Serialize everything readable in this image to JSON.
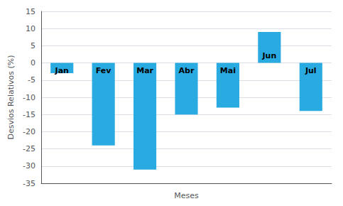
{
  "chart_data": {
    "type": "bar",
    "categories": [
      "Jan",
      "Fev",
      "Mar",
      "Abr",
      "Mai",
      "Jun",
      "Jul"
    ],
    "values": [
      -3,
      -24,
      -31,
      -15,
      -13,
      9,
      -14
    ],
    "color": "#29ABE2",
    "xlabel": "Meses",
    "ylabel": "Desvios Relativos (%)",
    "ylim": [
      -35,
      15
    ],
    "yticks": [
      -35,
      -30,
      -25,
      -20,
      -15,
      -10,
      -5,
      0,
      5,
      10,
      15
    ],
    "grid": true,
    "tick_labels": "y"
  }
}
